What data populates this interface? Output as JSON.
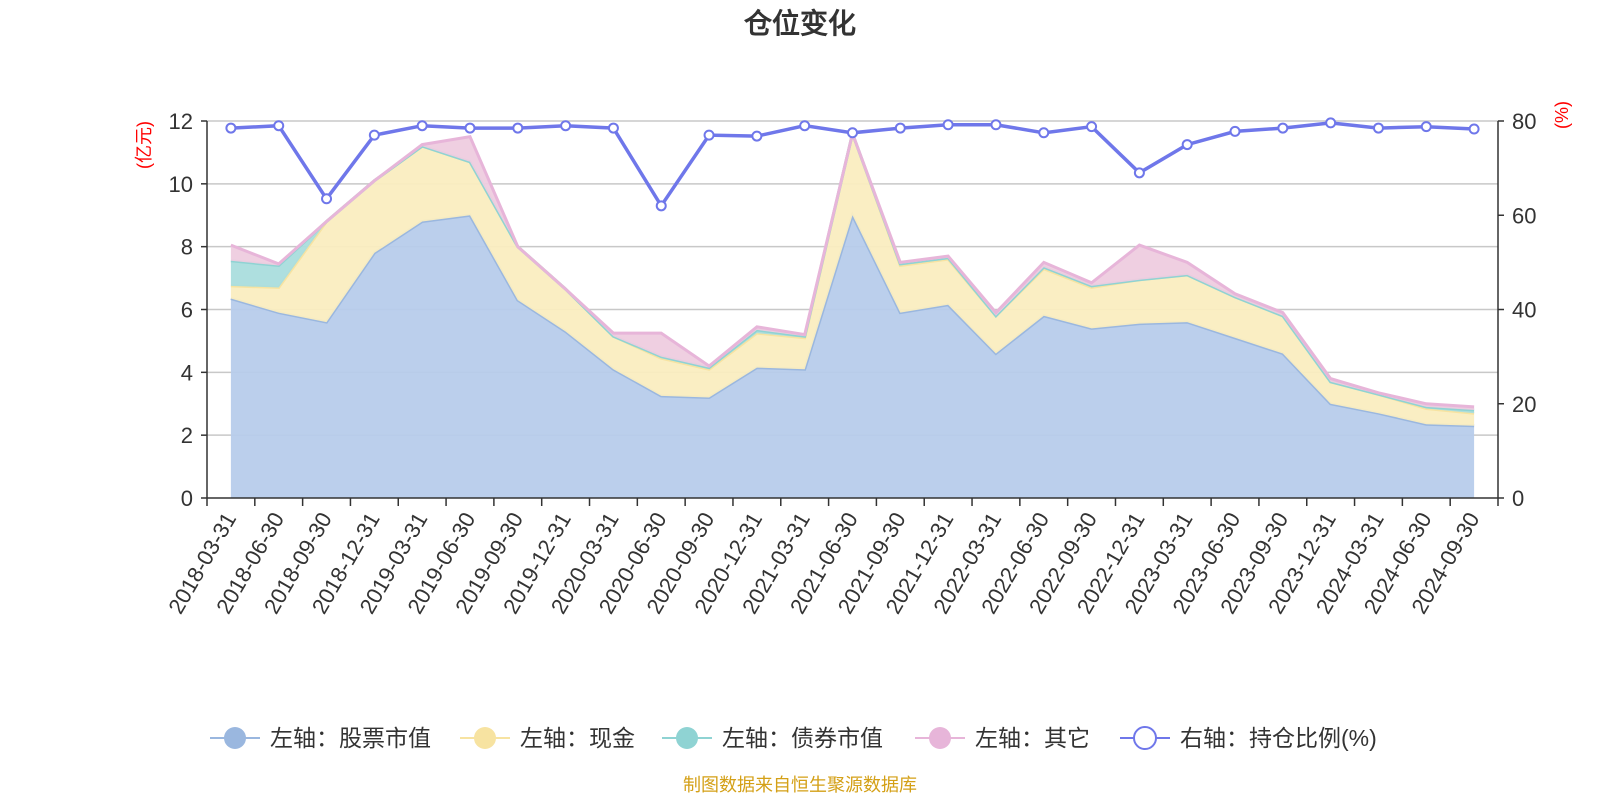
{
  "chart_data": {
    "type": "area",
    "title": "仓位变化",
    "source_note": "制图数据来自恒生聚源数据库",
    "left_unit": "(亿元)",
    "right_unit": "(%)",
    "left_ylim": [
      0,
      12
    ],
    "left_ticks": [
      0,
      2,
      4,
      6,
      8,
      10,
      12
    ],
    "right_ylim": [
      0,
      80
    ],
    "right_ticks": [
      0,
      20,
      40,
      60,
      80
    ],
    "grid": true,
    "legend_position": "bottom",
    "categories": [
      "2018-03-31",
      "2018-06-30",
      "2018-09-30",
      "2018-12-31",
      "2019-03-31",
      "2019-06-30",
      "2019-09-30",
      "2019-12-31",
      "2020-03-31",
      "2020-06-30",
      "2020-09-30",
      "2020-12-31",
      "2021-03-31",
      "2021-06-30",
      "2021-09-30",
      "2021-12-31",
      "2022-03-31",
      "2022-06-30",
      "2022-09-30",
      "2022-12-31",
      "2023-03-31",
      "2023-06-30",
      "2023-09-30",
      "2023-12-31",
      "2024-03-31",
      "2024-06-30",
      "2024-09-30"
    ],
    "series": [
      {
        "name": "左轴：股票市值",
        "axis": "left",
        "stack": true,
        "color": "#9ab7df",
        "fill": "#b7cceb",
        "values": [
          6.35,
          5.9,
          5.6,
          7.8,
          8.8,
          9.0,
          6.3,
          5.3,
          4.1,
          3.25,
          3.2,
          4.15,
          4.1,
          9.0,
          5.9,
          6.15,
          4.6,
          5.8,
          5.4,
          5.55,
          5.6,
          5.1,
          4.6,
          3.0,
          2.7,
          2.35,
          2.3
        ]
      },
      {
        "name": "左轴：现金",
        "axis": "left",
        "stack": true,
        "color": "#f7e3a1",
        "fill": "#faedc0",
        "values": [
          0.4,
          0.8,
          3.2,
          2.3,
          2.4,
          1.7,
          1.7,
          1.35,
          1.05,
          1.2,
          0.9,
          1.1,
          1.0,
          2.6,
          1.5,
          1.45,
          1.2,
          1.5,
          1.3,
          1.4,
          1.5,
          1.3,
          1.2,
          0.7,
          0.6,
          0.5,
          0.4
        ]
      },
      {
        "name": "左轴：债券市值",
        "axis": "left",
        "stack": true,
        "color": "#8fd3d3",
        "fill": "#aadddd",
        "values": [
          0.8,
          0.7,
          0.0,
          0.0,
          0.0,
          0.0,
          0.0,
          0.0,
          0.0,
          0.05,
          0.05,
          0.1,
          0.05,
          0.0,
          0.05,
          0.05,
          0.0,
          0.05,
          0.05,
          0.0,
          0.0,
          0.0,
          0.0,
          0.0,
          0.0,
          0.05,
          0.1
        ]
      },
      {
        "name": "左轴：其它",
        "axis": "left",
        "stack": true,
        "color": "#e7b5d9",
        "fill": "#eeccdf",
        "values": [
          0.5,
          0.05,
          0.0,
          0.0,
          0.05,
          0.8,
          0.0,
          0.0,
          0.1,
          0.75,
          0.05,
          0.1,
          0.05,
          0.0,
          0.05,
          0.05,
          0.1,
          0.15,
          0.1,
          1.1,
          0.4,
          0.1,
          0.1,
          0.1,
          0.05,
          0.1,
          0.1
        ]
      },
      {
        "name": "右轴：持仓比例(%)",
        "axis": "right",
        "stack": false,
        "color": "#6f77ea",
        "values": [
          78.5,
          79.0,
          63.5,
          77.0,
          79.0,
          78.5,
          78.5,
          79.0,
          78.5,
          62.0,
          77.0,
          76.8,
          79.0,
          77.5,
          78.5,
          79.2,
          79.2,
          77.5,
          78.8,
          69.0,
          75.0,
          77.8,
          78.5,
          79.6,
          78.5,
          78.8,
          78.3
        ]
      }
    ]
  }
}
